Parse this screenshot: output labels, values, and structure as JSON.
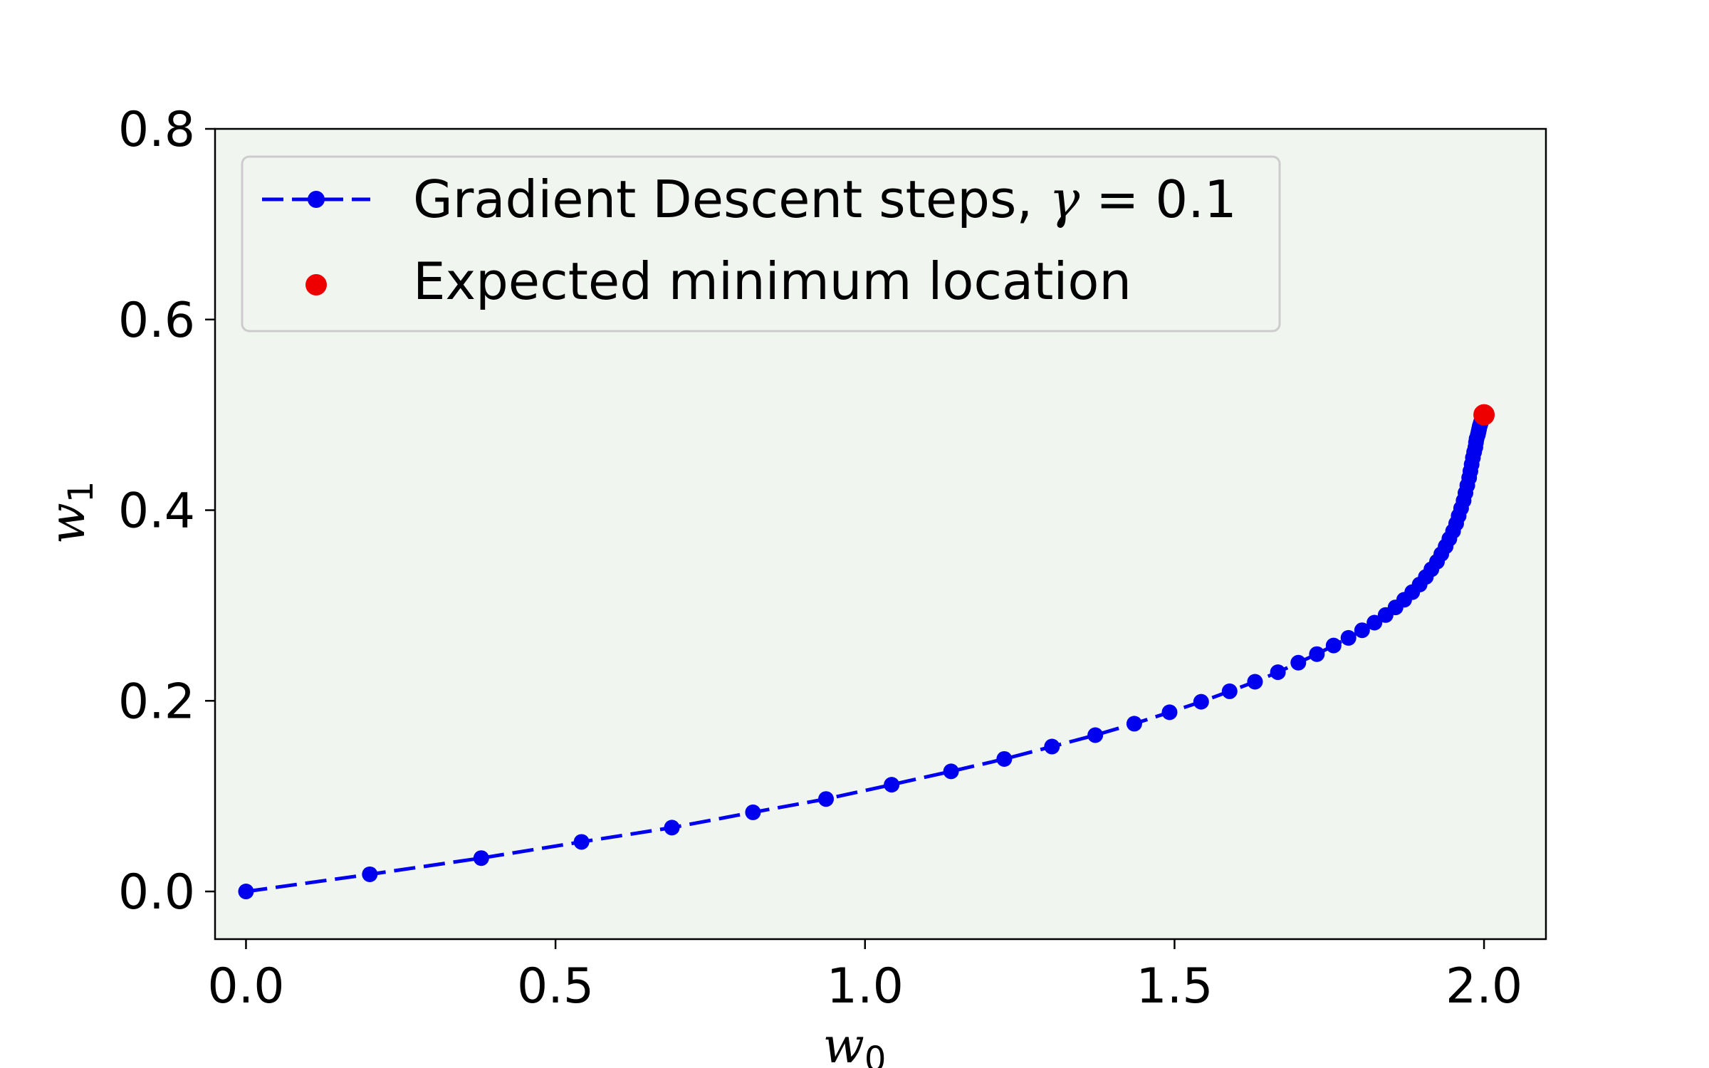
{
  "chart_data": {
    "type": "line",
    "title": "",
    "xlabel": "w0",
    "ylabel": "w1",
    "xlabel_parts": {
      "base": "w",
      "sub": "0"
    },
    "ylabel_parts": {
      "base": "w",
      "sub": "1"
    },
    "xlim": [
      -0.05,
      2.1
    ],
    "ylim": [
      -0.05,
      0.8
    ],
    "xticks": [
      0.0,
      0.5,
      1.0,
      1.5,
      2.0
    ],
    "xtick_labels": [
      "0.0",
      "0.5",
      "1.0",
      "1.5",
      "2.0"
    ],
    "yticks": [
      0.0,
      0.2,
      0.4,
      0.6,
      0.8
    ],
    "ytick_labels": [
      "0.0",
      "0.2",
      "0.4",
      "0.6",
      "0.8"
    ],
    "grid": false,
    "plot_background": "#f0f5f0",
    "legend_position": "top-left",
    "series": [
      {
        "name": "Gradient Descent steps, γ = 0.1",
        "name_parts": {
          "prefix": "Gradient Descent steps, ",
          "symbol": "γ",
          "suffix": " = 0.1"
        },
        "style": "dashed-with-markers",
        "color": "#0000ee",
        "x": [
          0.0,
          0.2,
          0.38,
          0.542,
          0.688,
          0.819,
          0.937,
          1.043,
          1.139,
          1.225,
          1.302,
          1.372,
          1.435,
          1.492,
          1.543,
          1.589,
          1.63,
          1.667,
          1.7,
          1.73,
          1.757,
          1.781,
          1.803,
          1.823,
          1.841,
          1.857,
          1.871,
          1.884,
          1.896,
          1.906,
          1.915,
          1.924,
          1.931,
          1.938,
          1.944,
          1.95,
          1.955,
          1.959,
          1.963,
          1.967,
          1.97,
          1.973,
          1.976,
          1.978,
          1.98,
          1.982,
          1.984,
          1.986,
          1.987,
          1.988,
          1.99,
          1.991,
          1.992,
          1.993,
          1.994,
          1.995,
          1.996,
          1.997,
          1.998,
          1.999,
          2.0
        ],
        "y": [
          0.0,
          0.018,
          0.035,
          0.052,
          0.067,
          0.083,
          0.097,
          0.112,
          0.126,
          0.139,
          0.152,
          0.164,
          0.176,
          0.188,
          0.199,
          0.21,
          0.22,
          0.23,
          0.24,
          0.249,
          0.258,
          0.266,
          0.274,
          0.282,
          0.29,
          0.298,
          0.306,
          0.314,
          0.322,
          0.33,
          0.338,
          0.346,
          0.354,
          0.362,
          0.37,
          0.378,
          0.386,
          0.394,
          0.402,
          0.41,
          0.418,
          0.426,
          0.434,
          0.441,
          0.448,
          0.455,
          0.461,
          0.466,
          0.471,
          0.475,
          0.479,
          0.482,
          0.485,
          0.488,
          0.49,
          0.492,
          0.494,
          0.496,
          0.497,
          0.499,
          0.5
        ]
      },
      {
        "name": "Expected minimum location",
        "style": "marker",
        "color": "#ee0000",
        "x": [
          2.0
        ],
        "y": [
          0.5
        ]
      }
    ]
  }
}
